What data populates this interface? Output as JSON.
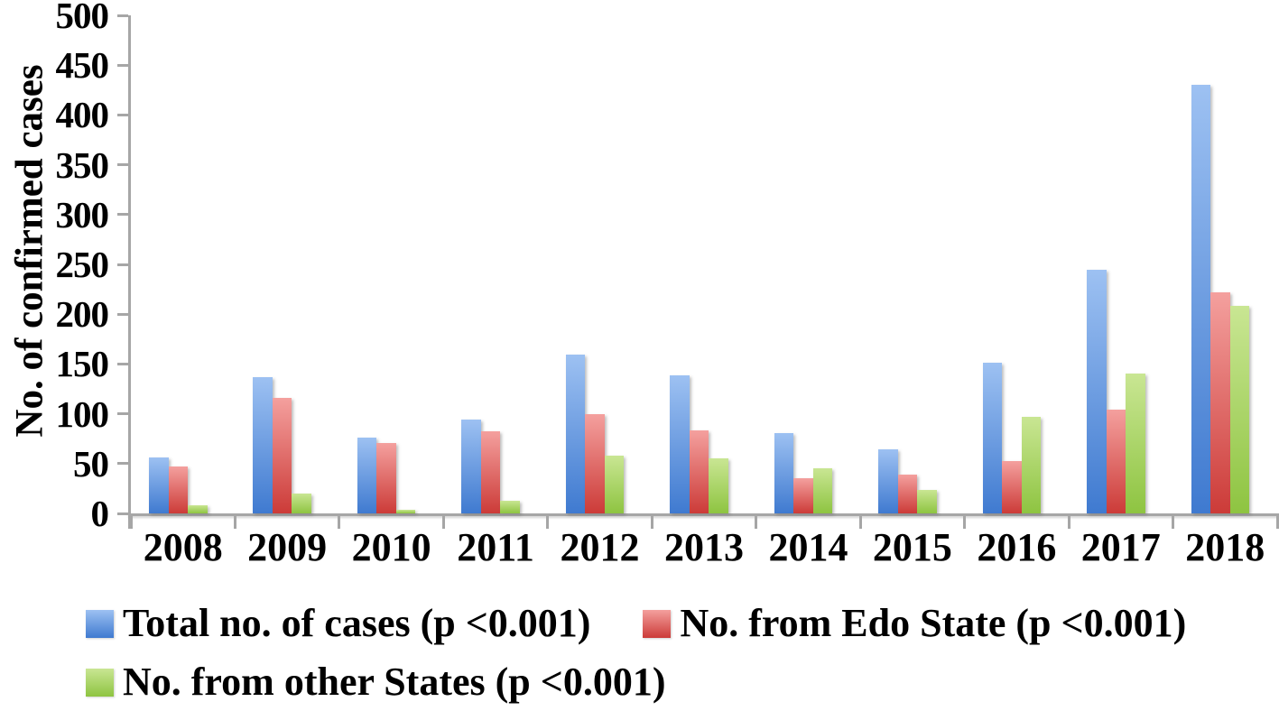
{
  "chart_data": {
    "type": "bar",
    "title": "",
    "xlabel": "",
    "ylabel": "No. of confirmed cases",
    "ylim": [
      0,
      500
    ],
    "ytick_step": 50,
    "ytick_labels": [
      "500",
      "450",
      "400",
      "350",
      "300",
      "250",
      "200",
      "150",
      "100",
      "50",
      "0"
    ],
    "grid": false,
    "legend_position": "bottom",
    "axis_color": "#a6a6a6",
    "text_color": "#000000",
    "categories": [
      "2008",
      "2009",
      "2010",
      "2011",
      "2012",
      "2013",
      "2014",
      "2015",
      "2016",
      "2017",
      "2018"
    ],
    "series": [
      {
        "key": "total",
        "name": "Total no. of cases (p <0.001)",
        "color_top": "#9dc1f2",
        "color_bottom": "#3f7ad0",
        "values": [
          56,
          137,
          76,
          94,
          159,
          139,
          81,
          64,
          151,
          245,
          430
        ]
      },
      {
        "key": "edo",
        "name": "No. from Edo State (p <0.001)",
        "color_top": "#f4a09e",
        "color_bottom": "#cc3b38",
        "values": [
          47,
          116,
          71,
          82,
          100,
          83,
          35,
          39,
          53,
          104,
          222
        ]
      },
      {
        "key": "other",
        "name": "No. from other States (p <0.001)",
        "color_top": "#c9e693",
        "color_bottom": "#8ec441",
        "values": [
          8,
          20,
          4,
          13,
          58,
          55,
          45,
          24,
          97,
          140,
          208
        ]
      }
    ],
    "legend_rows": [
      [
        0,
        1
      ],
      [
        2
      ]
    ]
  }
}
